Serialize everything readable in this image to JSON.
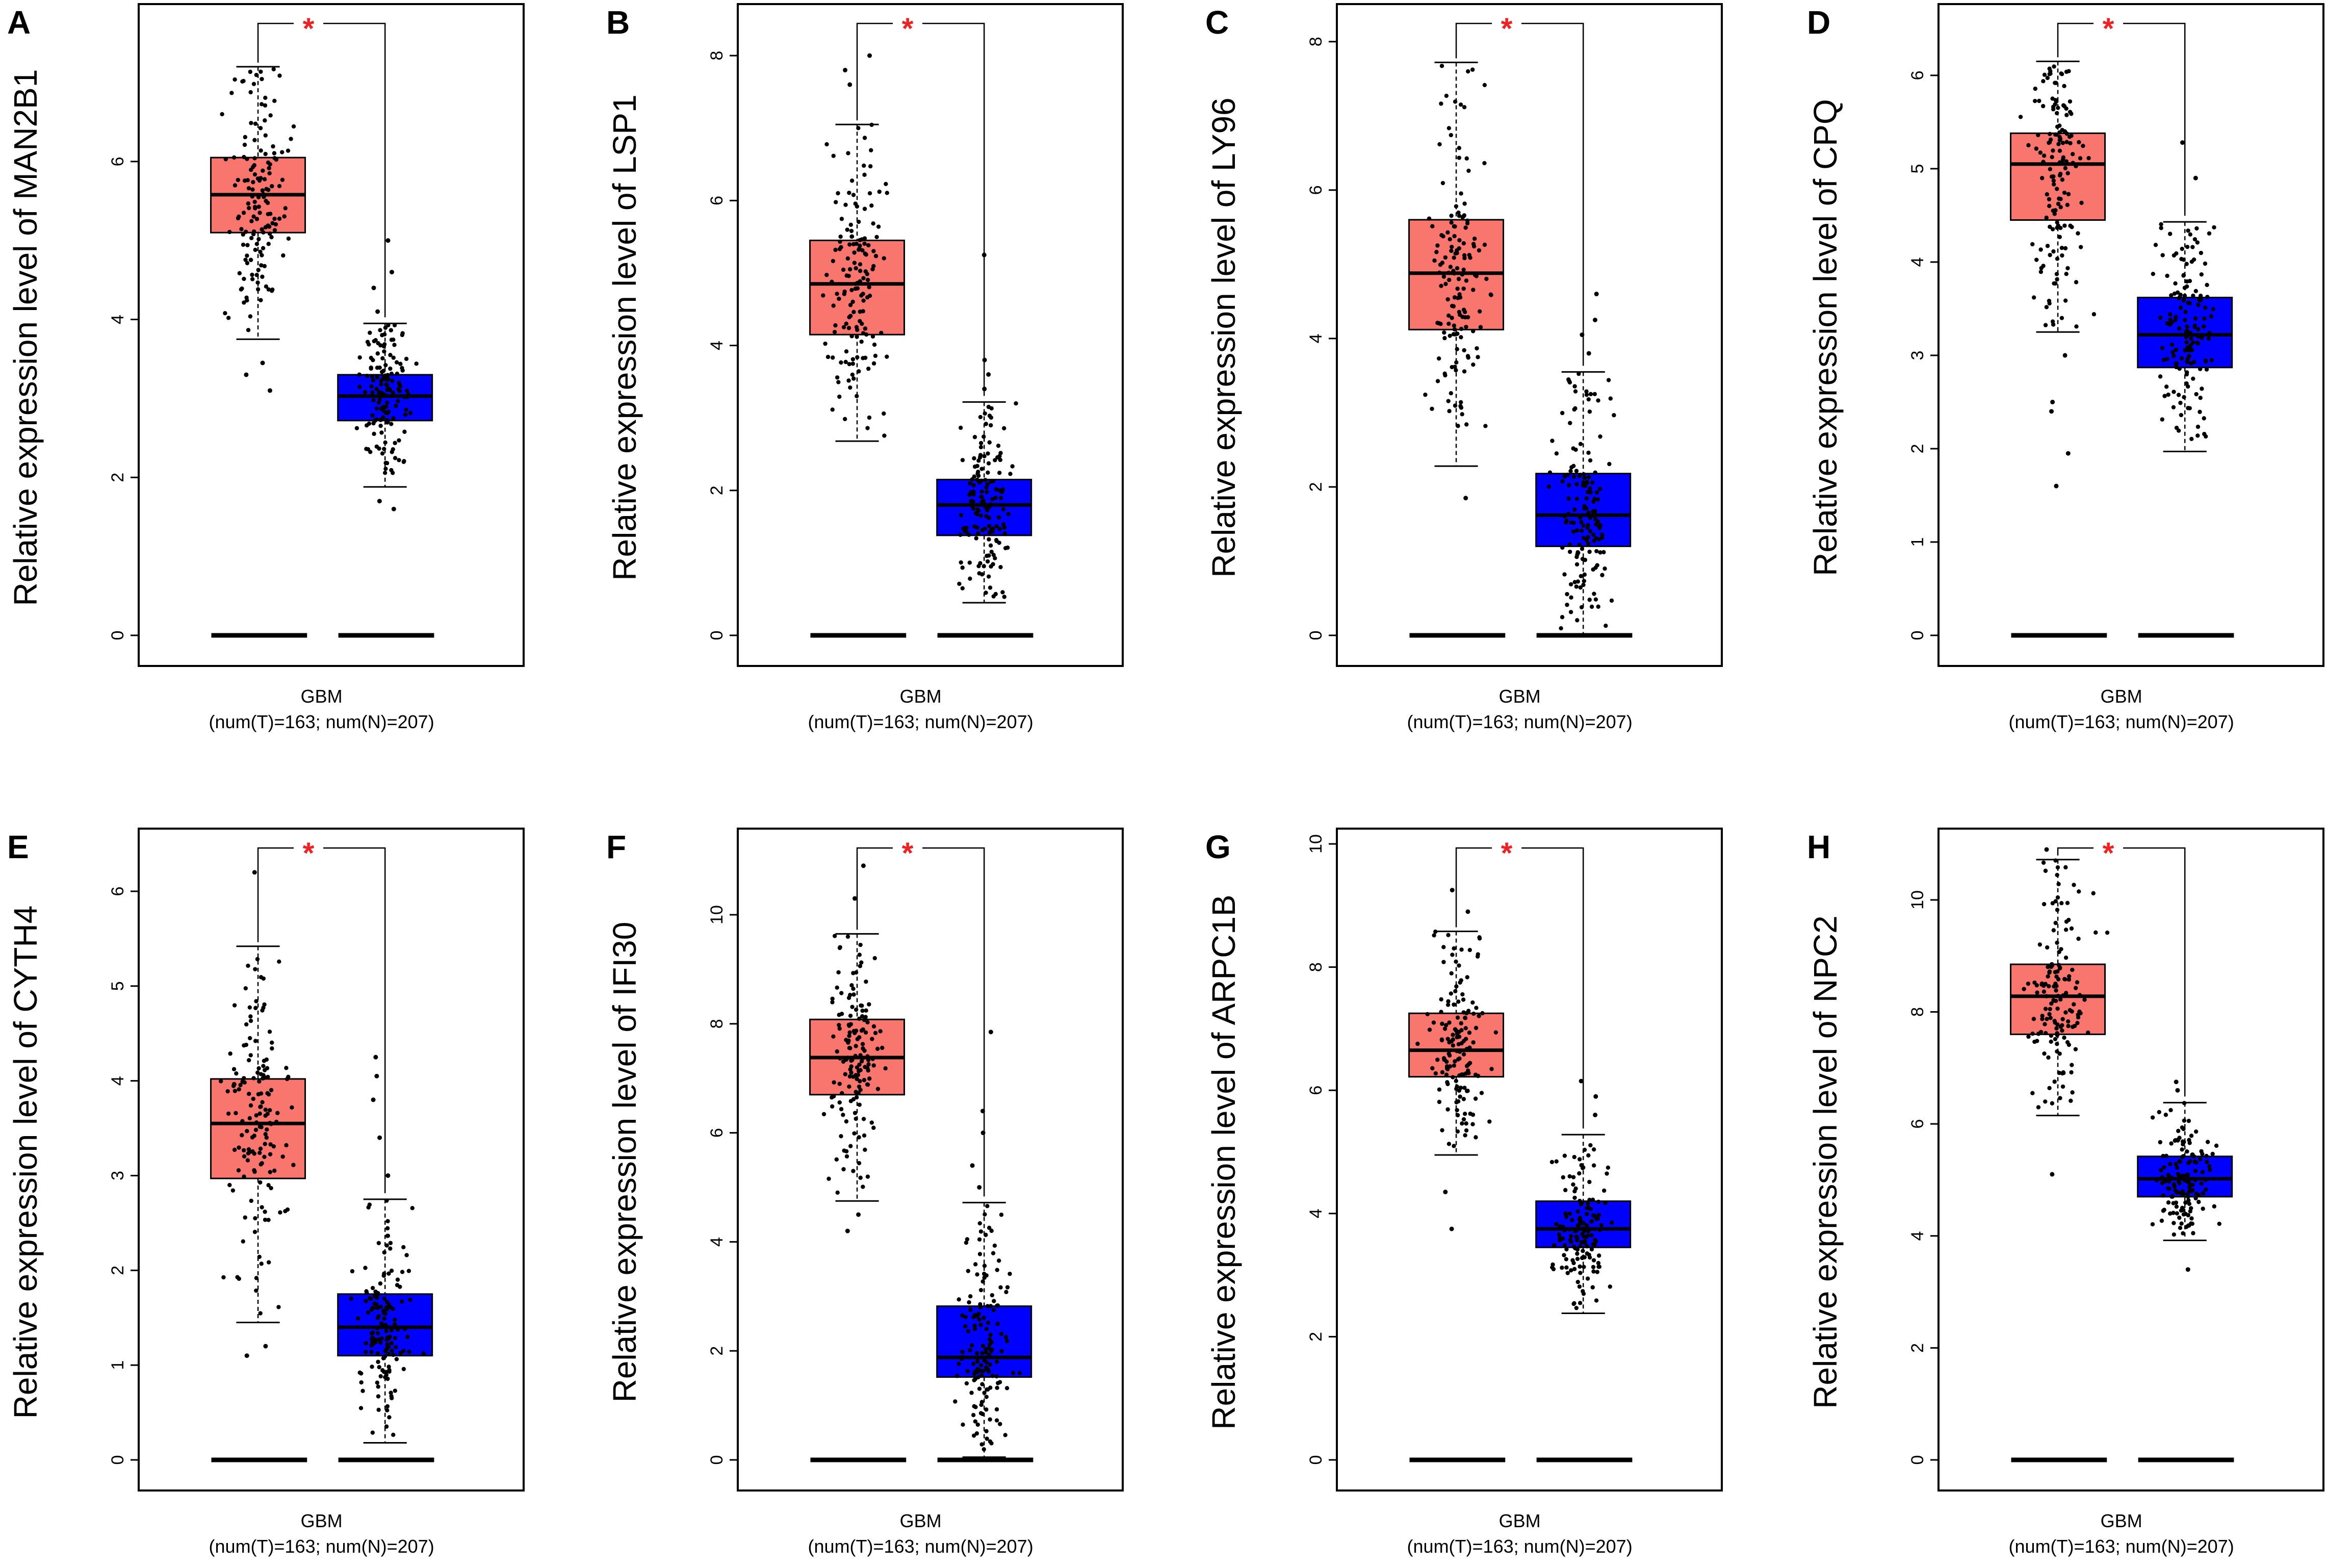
{
  "chart_data": [
    {
      "panel": "A",
      "type": "box",
      "title": "",
      "ylabel": "Relative expression level of MAN2B1",
      "ylim": [
        0,
        7.8
      ],
      "yticks": [
        0,
        2,
        4,
        6
      ],
      "xlabel": "GBM",
      "xsublabel": "(num(T)=163; num(N)=207)",
      "significance": "*",
      "groups": [
        {
          "name": "T",
          "color": "#f8766d",
          "min": 3.75,
          "q1": 5.1,
          "median": 5.58,
          "q3": 6.05,
          "max": 7.2,
          "outliers": [
            3.1,
            3.3,
            3.45
          ],
          "n": 163
        },
        {
          "name": "N",
          "color": "#0000ff",
          "min": 1.88,
          "q1": 2.72,
          "median": 3.03,
          "q3": 3.3,
          "max": 3.95,
          "outliers": [
            1.6,
            1.7,
            4.1,
            4.4,
            4.6,
            5.0
          ],
          "n": 207
        }
      ]
    },
    {
      "panel": "B",
      "type": "box",
      "title": "",
      "ylabel": "Relative expression level of LSP1",
      "ylim": [
        0,
        8.5
      ],
      "yticks": [
        0,
        2,
        4,
        6,
        8
      ],
      "xlabel": "GBM",
      "xsublabel": "(num(T)=163; num(N)=207)",
      "significance": "*",
      "groups": [
        {
          "name": "T",
          "color": "#f8766d",
          "min": 2.68,
          "q1": 4.15,
          "median": 4.85,
          "q3": 5.45,
          "max": 7.05,
          "outliers": [
            7.6,
            7.8,
            8.0
          ],
          "n": 163
        },
        {
          "name": "N",
          "color": "#0000ff",
          "min": 0.45,
          "q1": 1.38,
          "median": 1.8,
          "q3": 2.15,
          "max": 3.22,
          "outliers": [
            3.4,
            3.6,
            3.8,
            5.25
          ],
          "n": 207
        }
      ]
    },
    {
      "panel": "C",
      "type": "box",
      "title": "",
      "ylabel": "Relative expression level of LY96",
      "ylim": [
        0,
        8.3
      ],
      "yticks": [
        0,
        2,
        4,
        6,
        8
      ],
      "xlabel": "GBM",
      "xsublabel": "(num(T)=163; num(N)=207)",
      "significance": "*",
      "groups": [
        {
          "name": "T",
          "color": "#f8766d",
          "min": 2.28,
          "q1": 4.12,
          "median": 4.88,
          "q3": 5.6,
          "max": 7.72,
          "outliers": [
            1.85
          ],
          "n": 163
        },
        {
          "name": "N",
          "color": "#0000ff",
          "min": 0.02,
          "q1": 1.2,
          "median": 1.62,
          "q3": 2.18,
          "max": 3.55,
          "outliers": [
            3.8,
            4.05,
            4.25,
            4.6
          ],
          "n": 207
        }
      ]
    },
    {
      "panel": "D",
      "type": "box",
      "title": "",
      "ylabel": "Relative expression level of CPQ",
      "ylim": [
        0,
        6.6
      ],
      "yticks": [
        0,
        1,
        2,
        3,
        4,
        5,
        6
      ],
      "xlabel": "GBM",
      "xsublabel": "(num(T)=163; num(N)=207)",
      "significance": "*",
      "groups": [
        {
          "name": "T",
          "color": "#f8766d",
          "min": 3.25,
          "q1": 4.45,
          "median": 5.05,
          "q3": 5.38,
          "max": 6.15,
          "outliers": [
            1.6,
            1.95,
            2.4,
            2.5,
            3.0
          ],
          "n": 163
        },
        {
          "name": "N",
          "color": "#0000ff",
          "min": 1.97,
          "q1": 2.87,
          "median": 3.22,
          "q3": 3.62,
          "max": 4.43,
          "outliers": [
            4.9,
            5.28
          ],
          "n": 207
        }
      ]
    },
    {
      "panel": "E",
      "type": "box",
      "title": "",
      "ylabel": "Relative expression level of CYTH4",
      "ylim": [
        0,
        6.5
      ],
      "yticks": [
        0,
        1,
        2,
        3,
        4,
        5,
        6
      ],
      "xlabel": "GBM",
      "xsublabel": "(num(T)=163; num(N)=207)",
      "significance": "*",
      "groups": [
        {
          "name": "T",
          "color": "#f8766d",
          "min": 1.45,
          "q1": 2.97,
          "median": 3.55,
          "q3": 4.02,
          "max": 5.42,
          "outliers": [
            1.1,
            1.2,
            6.2
          ],
          "n": 163
        },
        {
          "name": "N",
          "color": "#0000ff",
          "min": 0.18,
          "q1": 1.1,
          "median": 1.4,
          "q3": 1.75,
          "max": 2.75,
          "outliers": [
            3.0,
            3.4,
            3.8,
            4.05,
            4.25
          ],
          "n": 207
        }
      ]
    },
    {
      "panel": "F",
      "type": "box",
      "title": "",
      "ylabel": "Relative expression level of IFI30",
      "ylim": [
        0,
        11.3
      ],
      "yticks": [
        0,
        2,
        4,
        6,
        8,
        10
      ],
      "xlabel": "GBM",
      "xsublabel": "(num(T)=163; num(N)=207)",
      "significance": "*",
      "groups": [
        {
          "name": "T",
          "color": "#f8766d",
          "min": 4.75,
          "q1": 6.7,
          "median": 7.38,
          "q3": 8.08,
          "max": 9.65,
          "outliers": [
            4.2,
            4.5,
            10.3,
            10.9
          ],
          "n": 163
        },
        {
          "name": "N",
          "color": "#0000ff",
          "min": 0.05,
          "q1": 1.52,
          "median": 1.88,
          "q3": 2.82,
          "max": 4.72,
          "outliers": [
            5.0,
            5.4,
            6.0,
            6.4,
            7.85
          ],
          "n": 207
        }
      ]
    },
    {
      "panel": "G",
      "type": "box",
      "title": "",
      "ylabel": "Relative expression level of ARPC1B",
      "ylim": [
        0,
        10.0
      ],
      "yticks": [
        0,
        2,
        4,
        6,
        8,
        10
      ],
      "xlabel": "GBM",
      "xsublabel": "(num(T)=163; num(N)=207)",
      "significance": "*",
      "groups": [
        {
          "name": "T",
          "color": "#f8766d",
          "min": 4.95,
          "q1": 6.22,
          "median": 6.65,
          "q3": 7.25,
          "max": 8.58,
          "outliers": [
            3.75,
            4.35,
            8.9,
            9.25
          ],
          "n": 163
        },
        {
          "name": "N",
          "color": "#0000ff",
          "min": 2.38,
          "q1": 3.45,
          "median": 3.75,
          "q3": 4.2,
          "max": 5.28,
          "outliers": [
            5.6,
            5.9,
            6.15
          ],
          "n": 207
        }
      ]
    },
    {
      "panel": "H",
      "type": "box",
      "title": "",
      "ylabel": "Relative expression level of NPC2",
      "ylim": [
        0,
        11.0
      ],
      "yticks": [
        0,
        2,
        4,
        6,
        8,
        10
      ],
      "xlabel": "GBM",
      "xsublabel": "(num(T)=163; num(N)=207)",
      "significance": "*",
      "groups": [
        {
          "name": "T",
          "color": "#f8766d",
          "min": 6.15,
          "q1": 7.6,
          "median": 8.28,
          "q3": 8.85,
          "max": 10.72,
          "outliers": [
            5.1,
            10.9
          ],
          "n": 163
        },
        {
          "name": "N",
          "color": "#0000ff",
          "min": 3.92,
          "q1": 4.7,
          "median": 5.02,
          "q3": 5.42,
          "max": 6.38,
          "outliers": [
            3.4,
            6.6,
            6.75
          ],
          "n": 207
        }
      ]
    }
  ]
}
